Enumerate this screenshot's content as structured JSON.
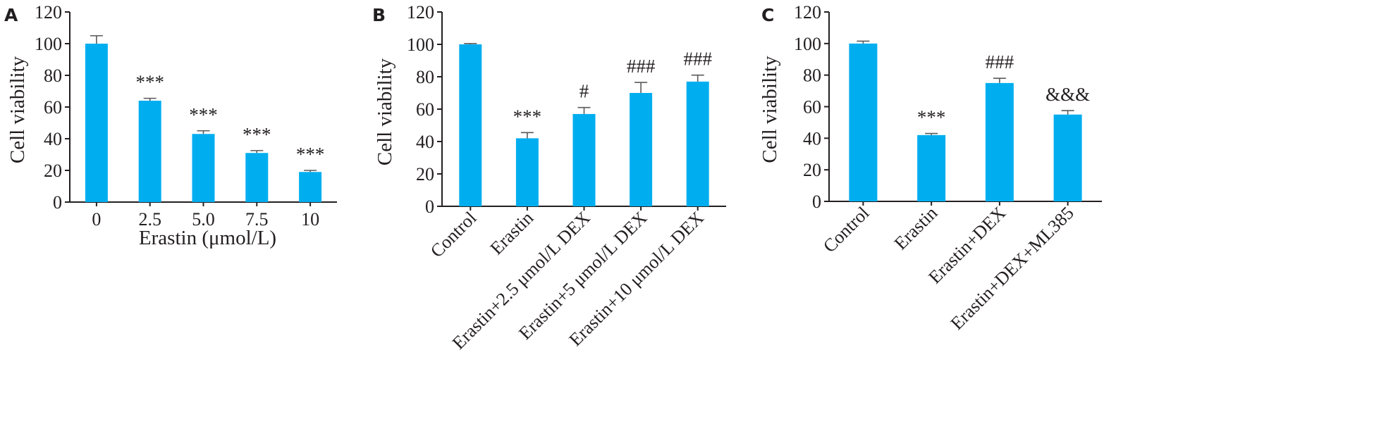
{
  "chart_data": [
    {
      "panel": "A",
      "type": "bar",
      "xlabel": "Erastin (μmol/L)",
      "ylabel": "Cell viability",
      "ylim": [
        0,
        120
      ],
      "yticks": [
        "0",
        "20",
        "40",
        "60",
        "80",
        "100",
        "120"
      ],
      "categories": [
        "0",
        "2.5",
        "5.0",
        "7.5",
        "10"
      ],
      "values": [
        100,
        64,
        43,
        31,
        19
      ],
      "errors": [
        5,
        1.5,
        2,
        1.5,
        1
      ],
      "annotations": [
        "",
        "***",
        "***",
        "***",
        "***"
      ],
      "bar_color": "#00aeef",
      "x_label_rotation": 0
    },
    {
      "panel": "B",
      "type": "bar",
      "xlabel": "",
      "ylabel": "Cell viability",
      "ylim": [
        0,
        120
      ],
      "yticks": [
        "0",
        "20",
        "40",
        "60",
        "80",
        "100",
        "120"
      ],
      "categories": [
        "Control",
        "Erastin",
        "Erastin+2.5 μmol/L DEX",
        "Erastin+5 μmol/L DEX",
        "Erastin+10 μmol/L DEX"
      ],
      "values": [
        100,
        42,
        57,
        70,
        77
      ],
      "errors": [
        0.5,
        3.5,
        4,
        6.5,
        4
      ],
      "annotations": [
        "",
        "***",
        "#",
        "###",
        "###"
      ],
      "bar_color": "#00aeef",
      "x_label_rotation": -45
    },
    {
      "panel": "C",
      "type": "bar",
      "xlabel": "",
      "ylabel": "Cell viability",
      "ylim": [
        0,
        120
      ],
      "yticks": [
        "0",
        "20",
        "40",
        "60",
        "80",
        "100",
        "120"
      ],
      "categories": [
        "Control",
        "Erastin",
        "Erastin+DEX",
        "Erastin+DEX+ML385"
      ],
      "values": [
        100,
        42,
        75,
        55
      ],
      "errors": [
        1.5,
        1,
        3,
        2.5
      ],
      "annotations": [
        "",
        "***",
        "###",
        "&&&"
      ],
      "bar_color": "#00aeef",
      "x_label_rotation": -45
    }
  ]
}
